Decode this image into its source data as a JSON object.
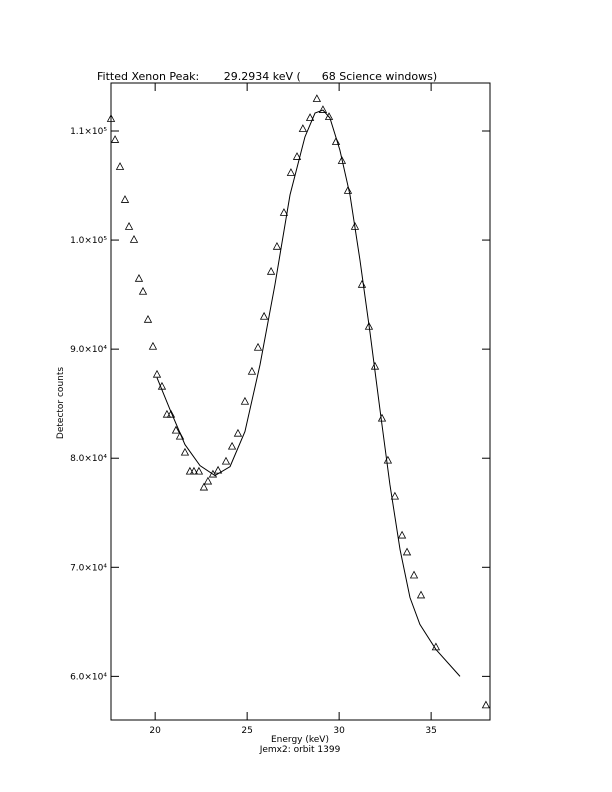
{
  "chart_data": {
    "type": "scatter",
    "title": "Fitted Xenon Peak:       29.2934 keV (      68 Science windows)",
    "xlabel": "Energy (keV)",
    "subtitle": "Jemx2: orbit 1399",
    "ylabel": "Detector counts",
    "xlim": [
      17.6,
      38.2
    ],
    "xticks": [
      20,
      25,
      30,
      35
    ],
    "ylim": [
      56000,
      114400
    ],
    "yticks": [
      {
        "value": 60000,
        "label": "6.0×10⁴"
      },
      {
        "value": 70000,
        "label": "7.0×10⁴"
      },
      {
        "value": 80000,
        "label": "8.0×10⁴"
      },
      {
        "value": 90000,
        "label": "9.0×10⁴"
      },
      {
        "value": 100000,
        "label": "1.0×10⁵"
      },
      {
        "value": 110000,
        "label": "1.1×10⁵"
      }
    ],
    "series": [
      {
        "marker": "triangle",
        "line": false,
        "color": "#000000",
        "x": [
          17.6,
          17.82,
          18.09,
          18.36,
          18.58,
          18.85,
          19.12,
          19.34,
          19.61,
          19.88,
          20.1,
          20.37,
          20.64,
          20.86,
          21.13,
          21.35,
          21.62,
          21.89,
          22.11,
          22.38,
          22.65,
          22.87,
          23.14,
          23.42,
          23.85,
          24.18,
          24.5,
          24.88,
          25.26,
          25.59,
          25.92,
          26.3,
          26.62,
          27.0,
          27.38,
          27.71,
          28.03,
          28.42,
          28.79,
          29.12,
          29.45,
          29.83,
          30.15,
          30.48,
          30.86,
          31.24,
          31.62,
          31.95,
          32.33,
          32.65,
          33.03,
          33.42,
          33.69,
          34.07,
          34.45,
          35.26,
          37.98
        ],
        "values": [
          111100,
          109180,
          106700,
          103680,
          101210,
          100020,
          96450,
          95260,
          92690,
          90220,
          87660,
          86560,
          83990,
          83990,
          82530,
          81980,
          80510,
          78770,
          78770,
          78770,
          77310,
          77860,
          78500,
          78860,
          79690,
          81060,
          82250,
          85180,
          87930,
          90130,
          92970,
          97090,
          99380,
          102490,
          106150,
          107620,
          110180,
          111190,
          112930,
          111920,
          111280,
          108990,
          107250,
          104510,
          101210,
          95900,
          92050,
          88390,
          83630,
          79780,
          76480,
          72910,
          71360,
          69250,
          67420,
          62660,
          57340
        ]
      },
      {
        "marker": "none",
        "line": true,
        "color": "#000000",
        "x": [
          20.1,
          20.81,
          21.62,
          22.44,
          23.25,
          24.07,
          24.88,
          25.7,
          26.51,
          27.33,
          28.14,
          28.69,
          29.12,
          29.5,
          30.04,
          30.59,
          31.13,
          31.68,
          32.22,
          32.76,
          33.31,
          33.85,
          34.39,
          35.26,
          36.57
        ],
        "values": [
          87380,
          84450,
          81250,
          79320,
          78410,
          79230,
          82440,
          88570,
          95900,
          104140,
          109450,
          111650,
          111920,
          111190,
          108260,
          104140,
          98190,
          91500,
          84450,
          77580,
          71630,
          67230,
          64760,
          62470,
          60000
        ]
      }
    ]
  }
}
